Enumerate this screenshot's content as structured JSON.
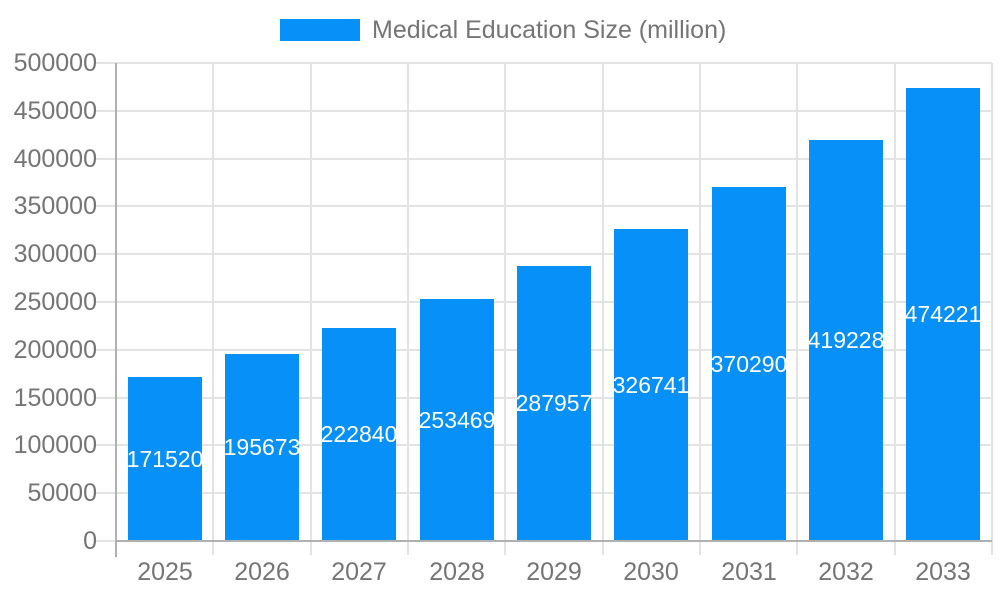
{
  "legend": {
    "label": "Medical Education Size (million)"
  },
  "colors": {
    "bar": "#0690F8",
    "bar_label": "#ffffff",
    "tick_label": "#757575",
    "legend_label": "#757575",
    "axis_line": "#b0b0b0",
    "gridline": "#e3e3e3",
    "background": "#ffffff"
  },
  "chart_data": {
    "type": "bar",
    "title": "Medical Education Size (million)",
    "categories": [
      "2025",
      "2026",
      "2027",
      "2028",
      "2029",
      "2030",
      "2031",
      "2032",
      "2033"
    ],
    "series": [
      {
        "name": "Medical Education Size (million)",
        "values": [
          171520,
          195673,
          222840,
          253469,
          287957,
          326741,
          370290,
          419228,
          474221
        ]
      }
    ],
    "values": [
      171520,
      195673,
      222840,
      253469,
      287957,
      326741,
      370290,
      419228,
      474221
    ],
    "data_labels": [
      171520,
      195673,
      222840,
      253469,
      287957,
      326741,
      370290,
      419228,
      474221
    ],
    "data_label_position": "inside-center",
    "xlabel": "",
    "ylabel": "",
    "ylim": [
      0,
      500000
    ],
    "yticks": [
      0,
      50000,
      100000,
      150000,
      200000,
      250000,
      300000,
      350000,
      400000,
      450000,
      500000
    ],
    "grid": true,
    "legend_position": "top"
  }
}
